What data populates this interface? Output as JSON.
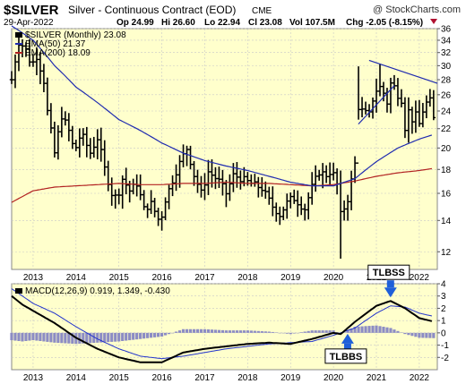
{
  "header": {
    "symbol": "$SILVER",
    "name": "Silver - Continuous Contract (EOD)",
    "exchange": "CME",
    "watermark": "@ StockCharts.com",
    "date": "29-Apr-2022",
    "quote": {
      "open": "Op 24.99",
      "high": "Hi 26.60",
      "low": "Lo 22.94",
      "close": "Cl 23.08",
      "volume": "Vol 107.5M",
      "change": "Chg -2.05 (-8.15%)"
    }
  },
  "colors": {
    "panel_bg": "#FFFFCC",
    "price_bar": "#000000",
    "ema50": "#1F2BB0",
    "ema200": "#B22222",
    "trendline": "#1F2BB0",
    "macd_line": "#000000",
    "signal_line": "#2233CC",
    "histogram": "#8C8CC4",
    "arrow": "#1F5FD9",
    "grid": "#C8C8C8"
  },
  "chart_data": [
    {
      "type": "ohlc",
      "panel": "price",
      "legend": [
        {
          "key": "sym",
          "label": "$SILVER (Monthly) 23.08"
        },
        {
          "key": "ema50",
          "label": "EMA(50) 21.37"
        },
        {
          "key": "ema200",
          "label": "EMA(200) 18.09"
        }
      ],
      "y_scale": "log",
      "ylim": [
        11,
        36
      ],
      "yticks": [
        12,
        14,
        16,
        18,
        20,
        22,
        24,
        26,
        28,
        30,
        32,
        34,
        36
      ],
      "x_range": [
        2012.5,
        2022.42
      ],
      "x_ticks": [
        {
          "x": 2013,
          "label": "2013"
        },
        {
          "x": 2014,
          "label": "2014"
        },
        {
          "x": 2015,
          "label": "2015"
        },
        {
          "x": 2016,
          "label": "2016"
        },
        {
          "x": 2017,
          "label": "2017"
        },
        {
          "x": 2018,
          "label": "2018"
        },
        {
          "x": 2019,
          "label": "2019"
        },
        {
          "x": 2020,
          "label": "2020"
        },
        {
          "x": 2021,
          "label": "2021"
        },
        {
          "x": 2022,
          "label": "2022"
        }
      ],
      "close_anchors": [
        [
          2012.5,
          28.0
        ],
        [
          2012.67,
          33.8
        ],
        [
          2012.83,
          32.5
        ],
        [
          2012.96,
          30.0
        ],
        [
          2013.08,
          31.5
        ],
        [
          2013.25,
          27.8
        ],
        [
          2013.33,
          24.0
        ],
        [
          2013.5,
          19.5
        ],
        [
          2013.67,
          23.5
        ],
        [
          2013.83,
          21.8
        ],
        [
          2013.96,
          19.6
        ],
        [
          2014.12,
          21.5
        ],
        [
          2014.33,
          19.5
        ],
        [
          2014.5,
          21.0
        ],
        [
          2014.67,
          18.0
        ],
        [
          2014.83,
          16.0
        ],
        [
          2014.96,
          15.6
        ],
        [
          2015.08,
          17.2
        ],
        [
          2015.25,
          16.2
        ],
        [
          2015.42,
          16.8
        ],
        [
          2015.58,
          14.8
        ],
        [
          2015.75,
          15.2
        ],
        [
          2015.96,
          13.8
        ],
        [
          2016.08,
          15.5
        ],
        [
          2016.33,
          17.8
        ],
        [
          2016.58,
          20.0
        ],
        [
          2016.75,
          17.5
        ],
        [
          2016.92,
          16.0
        ],
        [
          2017.08,
          17.8
        ],
        [
          2017.33,
          17.0
        ],
        [
          2017.5,
          16.0
        ],
        [
          2017.67,
          17.5
        ],
        [
          2017.96,
          17.0
        ],
        [
          2018.08,
          16.8
        ],
        [
          2018.33,
          16.4
        ],
        [
          2018.58,
          15.0
        ],
        [
          2018.75,
          14.4
        ],
        [
          2018.96,
          15.5
        ],
        [
          2019.08,
          15.6
        ],
        [
          2019.33,
          14.8
        ],
        [
          2019.5,
          16.5
        ],
        [
          2019.67,
          17.8
        ],
        [
          2019.83,
          17.5
        ],
        [
          2019.96,
          17.9
        ],
        [
          2020.08,
          16.8
        ],
        [
          2020.17,
          14.3
        ],
        [
          2020.33,
          15.5
        ],
        [
          2020.5,
          18.5
        ],
        [
          2020.58,
          24.5
        ],
        [
          2020.67,
          24.0
        ],
        [
          2020.83,
          23.5
        ],
        [
          2020.96,
          26.4
        ],
        [
          2021.08,
          27.0
        ],
        [
          2021.17,
          26.2
        ],
        [
          2021.25,
          25.0
        ],
        [
          2021.33,
          27.5
        ],
        [
          2021.42,
          27.0
        ],
        [
          2021.5,
          26.0
        ],
        [
          2021.58,
          25.5
        ],
        [
          2021.67,
          22.0
        ],
        [
          2021.75,
          24.0
        ],
        [
          2021.83,
          23.0
        ],
        [
          2021.92,
          23.5
        ],
        [
          2022.0,
          22.5
        ],
        [
          2022.08,
          24.0
        ],
        [
          2022.17,
          25.0
        ],
        [
          2022.25,
          25.2
        ],
        [
          2022.33,
          23.08
        ]
      ],
      "extremes": [
        {
          "t": 2020.17,
          "high": 17.9,
          "low": 11.6
        },
        {
          "t": 2020.58,
          "high": 29.9,
          "low": 23.0
        },
        {
          "t": 2021.08,
          "high": 30.3,
          "low": 25.8
        },
        {
          "t": 2022.33,
          "high": 26.6,
          "low": 22.94
        }
      ],
      "ema50_anchors": [
        [
          2012.5,
          36.5
        ],
        [
          2013.0,
          34.0
        ],
        [
          2013.5,
          30.0
        ],
        [
          2014.0,
          27.0
        ],
        [
          2014.5,
          25.0
        ],
        [
          2015.0,
          23.0
        ],
        [
          2015.5,
          21.8
        ],
        [
          2016.0,
          20.5
        ],
        [
          2016.5,
          19.5
        ],
        [
          2017.0,
          18.8
        ],
        [
          2017.5,
          18.3
        ],
        [
          2018.0,
          17.9
        ],
        [
          2018.5,
          17.4
        ],
        [
          2019.0,
          16.9
        ],
        [
          2019.5,
          16.6
        ],
        [
          2020.0,
          16.6
        ],
        [
          2020.5,
          17.2
        ],
        [
          2021.0,
          18.7
        ],
        [
          2021.5,
          20.0
        ],
        [
          2022.0,
          20.9
        ],
        [
          2022.33,
          21.37
        ]
      ],
      "ema200_anchors": [
        [
          2012.5,
          15.3
        ],
        [
          2013.0,
          16.2
        ],
        [
          2013.5,
          16.5
        ],
        [
          2014.0,
          16.6
        ],
        [
          2014.5,
          16.7
        ],
        [
          2015.0,
          16.8
        ],
        [
          2015.5,
          16.7
        ],
        [
          2016.0,
          16.7
        ],
        [
          2016.5,
          16.8
        ],
        [
          2017.0,
          16.8
        ],
        [
          2017.5,
          16.9
        ],
        [
          2018.0,
          16.8
        ],
        [
          2018.5,
          16.8
        ],
        [
          2019.0,
          16.7
        ],
        [
          2019.5,
          16.6
        ],
        [
          2020.0,
          16.7
        ],
        [
          2020.5,
          17.0
        ],
        [
          2021.0,
          17.4
        ],
        [
          2021.5,
          17.7
        ],
        [
          2022.0,
          17.9
        ],
        [
          2022.33,
          18.09
        ]
      ],
      "trendlines": [
        {
          "from": [
            2020.83,
            30.8
          ],
          "to": [
            2022.42,
            27.5
          ]
        },
        {
          "from": [
            2020.58,
            22.5
          ],
          "to": [
            2021.42,
            27.2
          ]
        }
      ]
    },
    {
      "type": "macd",
      "panel": "indicator",
      "legend": "MACD(12,26,9) 0.919, 1.349, -0.430",
      "ylim": [
        -3,
        4
      ],
      "yticks": [
        -2,
        -1,
        0,
        1,
        2,
        3,
        4
      ],
      "x_range": [
        2012.5,
        2022.42
      ],
      "x_ticks": [
        {
          "x": 2013,
          "label": "2013"
        },
        {
          "x": 2014,
          "label": "2014"
        },
        {
          "x": 2015,
          "label": "2015"
        },
        {
          "x": 2016,
          "label": "2016"
        },
        {
          "x": 2017,
          "label": "2017"
        },
        {
          "x": 2018,
          "label": "2018"
        },
        {
          "x": 2019,
          "label": "2019"
        },
        {
          "x": 2020,
          "label": "2020"
        },
        {
          "x": 2021,
          "label": "2021"
        },
        {
          "x": 2022,
          "label": "2022"
        }
      ],
      "macd_anchors": [
        [
          2012.5,
          3.0
        ],
        [
          2012.75,
          2.3
        ],
        [
          2013.0,
          1.8
        ],
        [
          2013.5,
          0.8
        ],
        [
          2014.0,
          -0.4
        ],
        [
          2014.5,
          -1.3
        ],
        [
          2015.0,
          -2.0
        ],
        [
          2015.5,
          -2.4
        ],
        [
          2016.0,
          -2.4
        ],
        [
          2016.5,
          -1.6
        ],
        [
          2017.0,
          -1.3
        ],
        [
          2017.5,
          -1.1
        ],
        [
          2018.0,
          -0.9
        ],
        [
          2018.5,
          -0.8
        ],
        [
          2019.0,
          -0.9
        ],
        [
          2019.5,
          -0.5
        ],
        [
          2020.0,
          0.0
        ],
        [
          2020.17,
          -0.1
        ],
        [
          2020.5,
          0.9
        ],
        [
          2021.0,
          2.2
        ],
        [
          2021.33,
          2.6
        ],
        [
          2021.67,
          2.0
        ],
        [
          2022.0,
          1.2
        ],
        [
          2022.33,
          0.919
        ]
      ],
      "signal_anchors": [
        [
          2012.5,
          3.6
        ],
        [
          2013.0,
          2.4
        ],
        [
          2013.5,
          1.6
        ],
        [
          2014.0,
          0.5
        ],
        [
          2014.5,
          -0.5
        ],
        [
          2015.0,
          -1.3
        ],
        [
          2015.5,
          -1.9
        ],
        [
          2016.0,
          -2.1
        ],
        [
          2016.5,
          -1.9
        ],
        [
          2017.0,
          -1.6
        ],
        [
          2017.5,
          -1.3
        ],
        [
          2018.0,
          -1.1
        ],
        [
          2018.5,
          -0.9
        ],
        [
          2019.0,
          -0.8
        ],
        [
          2019.5,
          -0.7
        ],
        [
          2020.0,
          -0.2
        ],
        [
          2020.5,
          0.4
        ],
        [
          2021.0,
          1.6
        ],
        [
          2021.33,
          2.2
        ],
        [
          2021.67,
          2.1
        ],
        [
          2022.0,
          1.6
        ],
        [
          2022.33,
          1.349
        ]
      ],
      "annotations": [
        {
          "label": "TLBSS",
          "target": [
            2021.33,
            2.6
          ],
          "arrow": "down"
        },
        {
          "label": "TLBBS",
          "target": [
            2020.33,
            0.0
          ],
          "arrow": "up"
        }
      ]
    }
  ]
}
